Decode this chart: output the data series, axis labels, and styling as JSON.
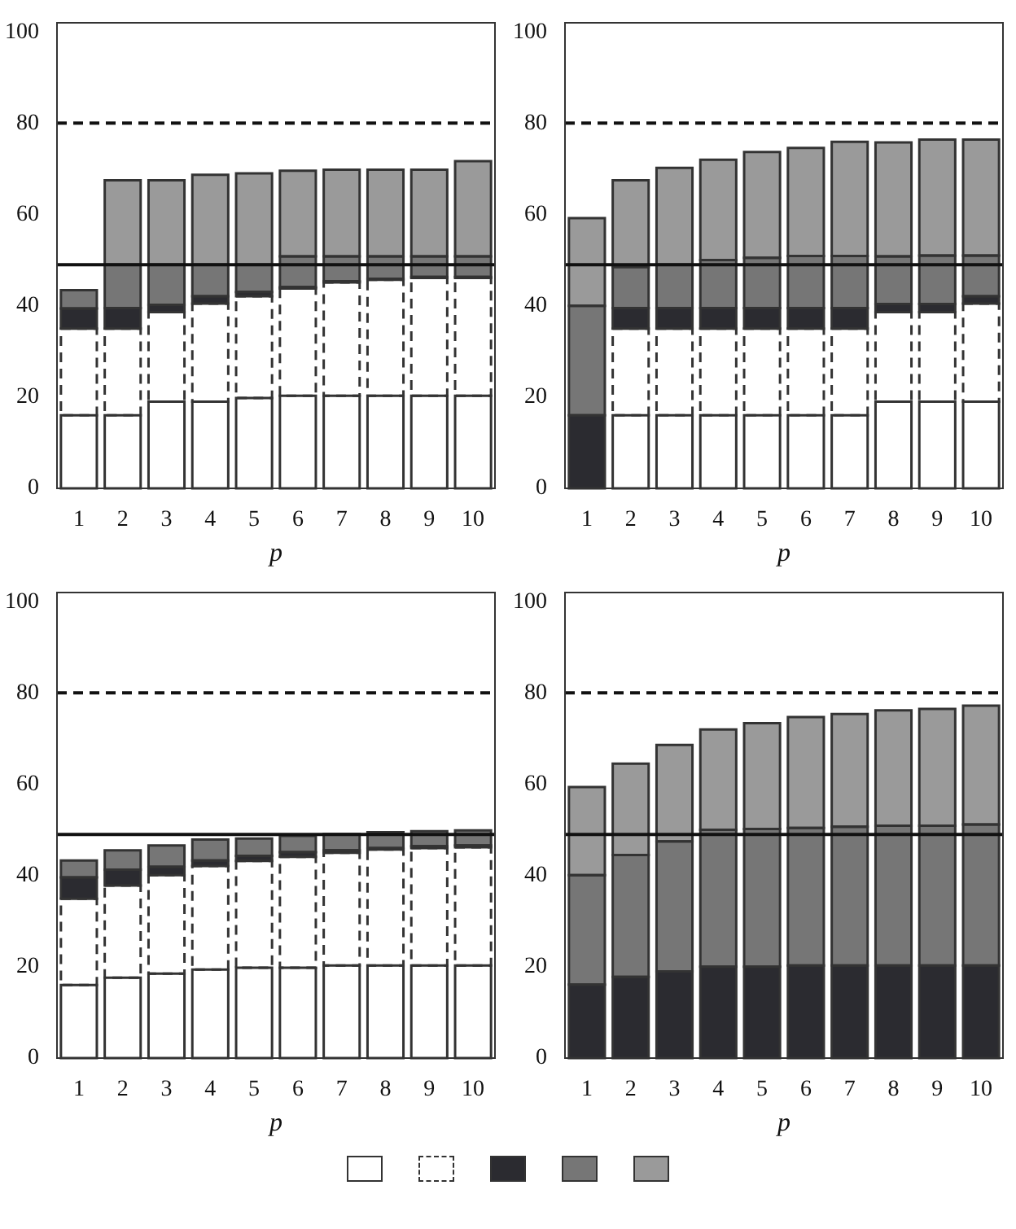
{
  "chart_data": [
    {
      "type": "bar",
      "stacked": true,
      "xlabel": "p",
      "categories": [
        "1",
        "2",
        "3",
        "4",
        "5",
        "6",
        "7",
        "8",
        "9",
        "10"
      ],
      "ylim": [
        0,
        102
      ],
      "yticks": [
        0,
        20,
        40,
        60,
        80,
        100
      ],
      "grid": false,
      "ref_lines": [
        {
          "axis": "y",
          "value": 80,
          "line_style": "dashed"
        },
        {
          "axis": "y",
          "value": 49,
          "line_style": "solid"
        }
      ],
      "series": [
        {
          "color": "#ffffff",
          "line_style": "solid",
          "values": [
            16,
            16,
            19,
            19,
            19.8,
            20.3,
            20.3,
            20.3,
            20.3,
            20.3
          ]
        },
        {
          "color": "#ffffff",
          "line_style": "dashed",
          "values": [
            19,
            19,
            19.6,
            21.5,
            22.3,
            23.5,
            24.8,
            25.4,
            25.8,
            25.8
          ]
        },
        {
          "color": "#2b2b30",
          "line_style": "solid",
          "values": [
            4.4,
            4.5,
            1.6,
            1.6,
            0.9,
            0.3,
            0.3,
            0.2,
            0.2,
            0.2
          ]
        },
        {
          "color": "#767676",
          "line_style": "solid",
          "values": [
            4,
            9.5,
            8.8,
            6.9,
            6,
            6.7,
            5.4,
            4.9,
            4.5,
            4.5
          ]
        },
        {
          "color": "#9a9a9a",
          "line_style": "solid",
          "values": [
            0,
            18.5,
            18.5,
            19.7,
            20,
            18.8,
            19,
            19,
            19,
            20.9
          ]
        }
      ]
    },
    {
      "type": "bar",
      "stacked": true,
      "xlabel": "p",
      "categories": [
        "1",
        "2",
        "3",
        "4",
        "5",
        "6",
        "7",
        "8",
        "9",
        "10"
      ],
      "ylim": [
        0,
        102
      ],
      "yticks": [
        0,
        20,
        40,
        60,
        80,
        100
      ],
      "grid": false,
      "ref_lines": [
        {
          "axis": "y",
          "value": 80,
          "line_style": "dashed"
        },
        {
          "axis": "y",
          "value": 49,
          "line_style": "solid"
        }
      ],
      "series": [
        {
          "color": "#ffffff",
          "line_style": "solid",
          "values": [
            0,
            16,
            16,
            16,
            16,
            16,
            16,
            19,
            19,
            19
          ]
        },
        {
          "color": "#ffffff",
          "line_style": "dashed",
          "values": [
            0,
            19,
            19,
            19,
            19,
            19,
            19,
            19.6,
            19.6,
            21.5
          ]
        },
        {
          "color": "#2b2b30",
          "line_style": "solid",
          "values": [
            16,
            4.5,
            4.5,
            4.5,
            4.5,
            4.5,
            4.5,
            1.8,
            1.8,
            1.6
          ]
        },
        {
          "color": "#767676",
          "line_style": "solid",
          "values": [
            24,
            9,
            9.5,
            10.5,
            11,
            11.4,
            11.4,
            10.4,
            10.6,
            8.9
          ]
        },
        {
          "color": "#9a9a9a",
          "line_style": "solid",
          "values": [
            19.2,
            19,
            21.2,
            22,
            23.2,
            23.7,
            25,
            25,
            25.4,
            25.4
          ]
        }
      ]
    },
    {
      "type": "bar",
      "stacked": true,
      "xlabel": "p",
      "categories": [
        "1",
        "2",
        "3",
        "4",
        "5",
        "6",
        "7",
        "8",
        "9",
        "10"
      ],
      "ylim": [
        0,
        102
      ],
      "yticks": [
        0,
        20,
        40,
        60,
        80,
        100
      ],
      "grid": false,
      "ref_lines": [
        {
          "axis": "y",
          "value": 80,
          "line_style": "dashed"
        },
        {
          "axis": "y",
          "value": 49,
          "line_style": "solid"
        }
      ],
      "series": [
        {
          "color": "#ffffff",
          "line_style": "solid",
          "values": [
            16,
            17.6,
            18.5,
            19.4,
            19.8,
            19.8,
            20.3,
            20.3,
            20.3,
            20.3
          ]
        },
        {
          "color": "#ffffff",
          "line_style": "dashed",
          "values": [
            18.9,
            20.2,
            21.6,
            22.7,
            23.4,
            24.3,
            24.7,
            25.4,
            25.7,
            25.9
          ]
        },
        {
          "color": "#2b2b30",
          "line_style": "solid",
          "values": [
            4.7,
            3.5,
            1.8,
            1.2,
            1.1,
            1,
            0.5,
            0.3,
            0.4,
            0.4
          ]
        },
        {
          "color": "#767676",
          "line_style": "solid",
          "values": [
            3.7,
            4.2,
            4.7,
            4.6,
            3.8,
            3.6,
            3.6,
            3.5,
            3.3,
            3.3
          ]
        },
        {
          "color": "#9a9a9a",
          "line_style": "solid",
          "values": [
            0,
            0,
            0,
            0,
            0,
            0,
            0,
            0,
            0,
            0
          ]
        }
      ]
    },
    {
      "type": "bar",
      "stacked": true,
      "xlabel": "p",
      "categories": [
        "1",
        "2",
        "3",
        "4",
        "5",
        "6",
        "7",
        "8",
        "9",
        "10"
      ],
      "ylim": [
        0,
        102
      ],
      "yticks": [
        0,
        20,
        40,
        60,
        80,
        100
      ],
      "grid": false,
      "ref_lines": [
        {
          "axis": "y",
          "value": 80,
          "line_style": "dashed"
        },
        {
          "axis": "y",
          "value": 49,
          "line_style": "solid"
        }
      ],
      "series": [
        {
          "color": "#ffffff",
          "line_style": "solid",
          "values": [
            0,
            0,
            0,
            0,
            0,
            0,
            0,
            0,
            0,
            0
          ]
        },
        {
          "color": "#ffffff",
          "line_style": "dashed",
          "values": [
            0,
            0,
            0,
            0,
            0,
            0,
            0,
            0,
            0,
            0
          ]
        },
        {
          "color": "#2b2b30",
          "line_style": "solid",
          "values": [
            16.1,
            17.8,
            19,
            20,
            20,
            20.3,
            20.3,
            20.3,
            20.3,
            20.3
          ]
        },
        {
          "color": "#767676",
          "line_style": "solid",
          "values": [
            24,
            26.7,
            28.5,
            30,
            30.2,
            30.1,
            30.4,
            30.6,
            30.6,
            30.9
          ]
        },
        {
          "color": "#9a9a9a",
          "line_style": "solid",
          "values": [
            19.3,
            20,
            21.1,
            22,
            23.2,
            24.3,
            24.7,
            25.3,
            25.6,
            26
          ]
        }
      ]
    }
  ]
}
